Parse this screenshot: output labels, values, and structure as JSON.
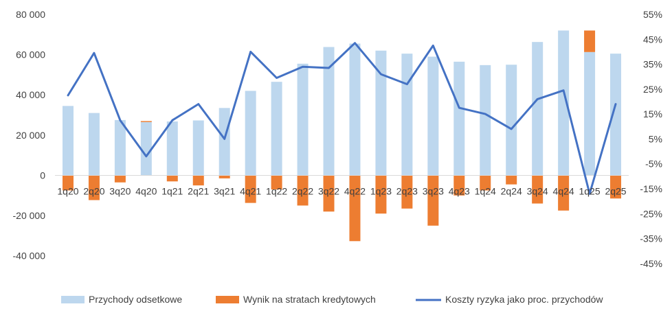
{
  "chart_data": {
    "type": "bar",
    "categories": [
      "1q20",
      "2q20",
      "3q20",
      "4q20",
      "1q21",
      "2q21",
      "3q21",
      "4q21",
      "1q22",
      "2q22",
      "3q22",
      "4q22",
      "1q23",
      "2q23",
      "3q23",
      "4q23",
      "1q24",
      "2q24",
      "3q24",
      "4q24",
      "1q25",
      "2q25"
    ],
    "series": [
      {
        "name": "Przychody odsetkowe",
        "type": "bar",
        "axis": "left",
        "color": "#BDD7EE",
        "values": [
          34500,
          31000,
          27500,
          26500,
          26800,
          27300,
          33500,
          42000,
          46500,
          55500,
          63800,
          65500,
          62000,
          60500,
          59000,
          56500,
          54800,
          55000,
          66300,
          72000,
          61300,
          60500
        ]
      },
      {
        "name": "Wynik na stratach kredytowych",
        "type": "bar",
        "axis": "left",
        "color": "#ED7D31",
        "values": [
          -7500,
          -12300,
          -3500,
          500,
          -3000,
          -5000,
          -1500,
          -13700,
          -7000,
          -15000,
          -18000,
          -32700,
          -19000,
          -16500,
          -25000,
          -10000,
          -7500,
          -4500,
          -14000,
          -17500,
          10700,
          -11500
        ]
      },
      {
        "name": "Koszty ryzyka jako proc. przychodów",
        "type": "line",
        "axis": "right",
        "color": "#4472C4",
        "values": [
          22.5,
          39.5,
          12.5,
          -2,
          12.5,
          19,
          5,
          40,
          29.5,
          34,
          33.5,
          43.5,
          31,
          27,
          42.5,
          17.5,
          15,
          9,
          21,
          24.5,
          -17,
          19
        ]
      }
    ],
    "y_left": {
      "lim": [
        -50000,
        80000
      ],
      "ticks": [
        80000,
        60000,
        40000,
        20000,
        0,
        -20000,
        -40000
      ],
      "tick_labels": [
        "80 000",
        "60 000",
        "40 000",
        "20 000",
        "0",
        "-20 000",
        "-40 000"
      ]
    },
    "y_right": {
      "lim": [
        -50,
        55
      ],
      "ticks": [
        55,
        45,
        35,
        25,
        15,
        5,
        -5,
        -15,
        -25,
        -35,
        -45
      ],
      "tick_labels": [
        "55%",
        "45%",
        "35%",
        "25%",
        "15%",
        "5%",
        "-5%",
        "-15%",
        "-25%",
        "-35%",
        "-45%"
      ]
    },
    "title": "",
    "xlabel": "",
    "ylabel": "",
    "grid": false,
    "legend_position": "bottom"
  }
}
